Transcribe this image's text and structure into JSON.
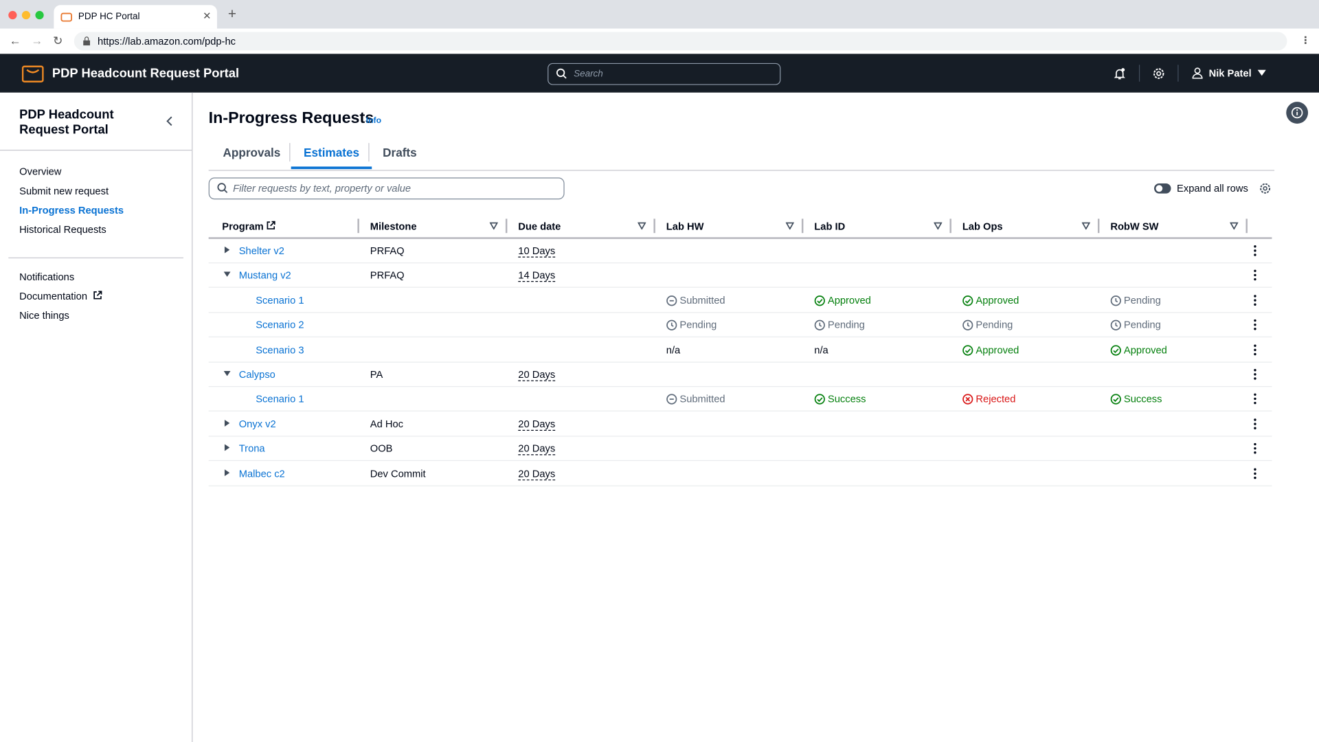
{
  "browser": {
    "tab_title": "PDP HC Portal",
    "url": "https://lab.amazon.com/pdp-hc"
  },
  "header": {
    "title": "PDP Headcount Request Portal",
    "search_placeholder": "Search",
    "user": "Nik Patel"
  },
  "sidebar": {
    "title": "PDP Headcount Request Portal",
    "nav": [
      "Overview",
      "Submit new request",
      "In-Progress Requests",
      "Historical Requests"
    ],
    "active": 2,
    "nav2": [
      "Notifications",
      "Documentation",
      "Nice things"
    ]
  },
  "main": {
    "title": "In-Progress Requests",
    "info": "Info",
    "tabs": [
      "Approvals",
      "Estimates",
      "Drafts"
    ],
    "active_tab": 1,
    "filter_placeholder": "Filter requests by text, property or value",
    "toggle_label": "Expand all rows"
  },
  "table": {
    "columns": [
      "Program",
      "Milestone",
      "Due date",
      "Lab HW",
      "Lab ID",
      "Lab Ops",
      "RobW SW"
    ],
    "rows": [
      {
        "program": "Shelter v2",
        "milestone": "PRFAQ",
        "due": "10 Days",
        "expand": "collapsed"
      },
      {
        "program": "Mustang v2",
        "milestone": "PRFAQ",
        "due": "14 Days",
        "expand": "expanded"
      },
      {
        "program": "Scenario 1",
        "cells": [
          {
            "text": "Submitted",
            "icon": "dash"
          },
          {
            "text": "Approved",
            "icon": "check"
          },
          {
            "text": "Approved",
            "icon": "check"
          },
          {
            "text": "Pending",
            "icon": "clock"
          }
        ]
      },
      {
        "program": "Scenario 2",
        "cells": [
          {
            "text": "Pending",
            "icon": "clock"
          },
          {
            "text": "Pending",
            "icon": "clock"
          },
          {
            "text": "Pending",
            "icon": "clock"
          },
          {
            "text": "Pending",
            "icon": "clock"
          }
        ]
      },
      {
        "program": "Scenario 3",
        "cells": [
          {
            "text": "n/a"
          },
          {
            "text": "n/a"
          },
          {
            "text": "Approved",
            "icon": "check"
          },
          {
            "text": "Approved",
            "icon": "check"
          }
        ]
      },
      {
        "program": "Calypso",
        "milestone": "PA",
        "due": "20 Days",
        "expand": "expanded"
      },
      {
        "program": "Scenario 1",
        "cells": [
          {
            "text": "Submitted",
            "icon": "dash"
          },
          {
            "text": "Success",
            "icon": "check"
          },
          {
            "text": "Rejected",
            "icon": "x"
          },
          {
            "text": "Success",
            "icon": "check"
          }
        ]
      },
      {
        "program": "Onyx v2",
        "milestone": "Ad Hoc",
        "due": "20 Days",
        "expand": "collapsed"
      },
      {
        "program": "Trona",
        "milestone": "OOB",
        "due": "20 Days",
        "expand": "collapsed"
      },
      {
        "program": "Malbec c2",
        "milestone": "Dev Commit",
        "due": "20 Days",
        "expand": "collapsed"
      }
    ]
  }
}
